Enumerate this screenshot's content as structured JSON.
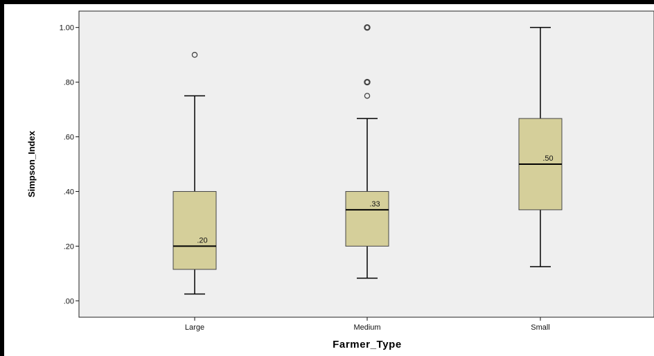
{
  "chart_data": {
    "type": "box",
    "title": "",
    "xlabel": "Farmer_Type",
    "ylabel": "Simpson_Index",
    "ylim": [
      -0.06,
      1.06
    ],
    "yticks": [
      {
        "value": 0.0,
        "label": ".00"
      },
      {
        "value": 0.2,
        "label": ".20"
      },
      {
        "value": 0.4,
        "label": ".40"
      },
      {
        "value": 0.6,
        "label": ".60"
      },
      {
        "value": 0.8,
        "label": ".80"
      },
      {
        "value": 1.0,
        "label": "1.00"
      }
    ],
    "categories": [
      "Large",
      "Medium",
      "Small"
    ],
    "boxes": [
      {
        "category": "Large",
        "min": 0.025,
        "q1": 0.115,
        "median": 0.2,
        "q3": 0.4,
        "max": 0.75,
        "median_label": ".20",
        "outliers": [
          0.9
        ]
      },
      {
        "category": "Medium",
        "min": 0.083,
        "q1": 0.2,
        "median": 0.333,
        "q3": 0.4,
        "max": 0.667,
        "median_label": ".33",
        "outliers": [
          0.75,
          0.8,
          1.0
        ]
      },
      {
        "category": "Small",
        "min": 0.125,
        "q1": 0.333,
        "median": 0.5,
        "q3": 0.667,
        "max": 1.0,
        "median_label": ".50",
        "outliers": []
      }
    ],
    "grid": false,
    "legend": "none",
    "colors": {
      "plot_background": "#efefef",
      "box_fill": "#d5cf9a",
      "box_stroke": "#444444",
      "line": "#000000"
    }
  }
}
